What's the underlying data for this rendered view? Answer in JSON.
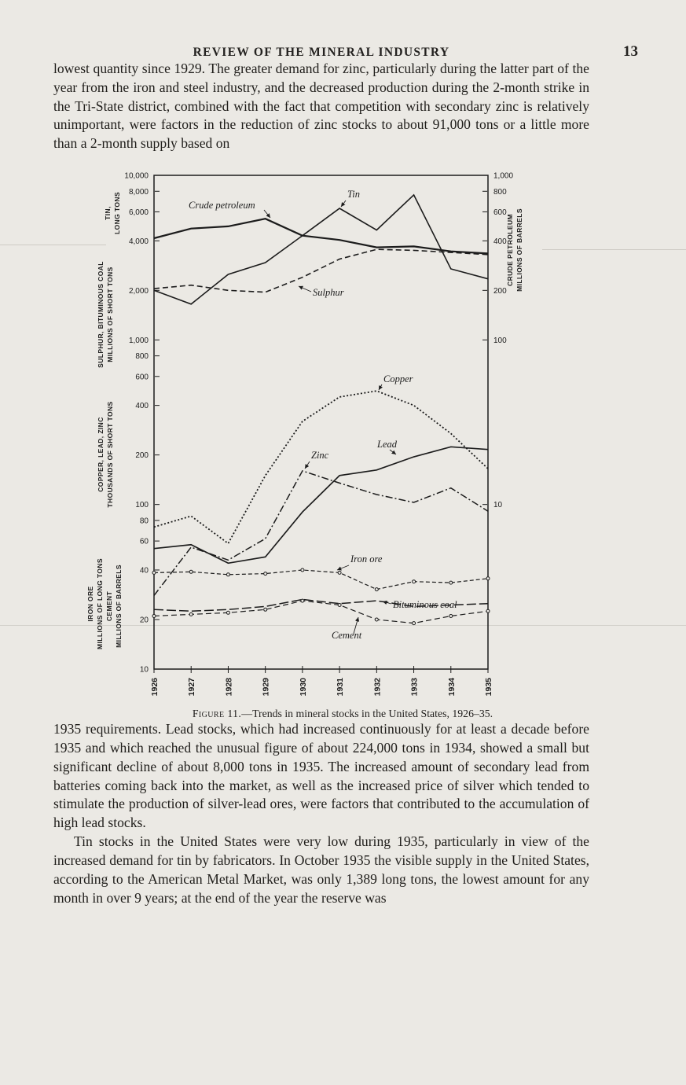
{
  "page": {
    "header": {
      "title": "REVIEW OF THE MINERAL INDUSTRY",
      "page_number": "13"
    },
    "paragraphs": {
      "p1": "lowest quantity since 1929.  The greater demand for zinc, particularly during the latter part of the year from the iron and steel industry, and the decreased production during the 2-month strike in the Tri-State district, combined with the fact that competition with secondary zinc is relatively unimportant, were factors in the reduction of zinc stocks to about 91,000 tons or a little more than a 2-month supply based on",
      "p2": "1935 requirements.  Lead stocks, which had increased continuously for at least a decade before 1935 and which reached the unusual figure of about 224,000 tons in 1934, showed a small but significant decline of about 8,000 tons in 1935.  The increased amount of secondary lead from batteries coming back into the market, as well as the increased price of silver which tended to stimulate the production of silver-lead ores, were factors that contributed to the accumulation of high lead stocks.",
      "p3": "Tin stocks in the United States were very low during 1935, particularly in view of the increased demand for tin by fabricators.  In October 1935 the visible supply in the United States, according to the American Metal Market, was only 1,389 long tons, the lowest amount for any month in over 9 years; at the end of the year the reserve was"
    },
    "figure": {
      "caption_prefix": "Figure 11.",
      "caption_rest": "—Trends in mineral stocks in the United States, 1926–35."
    }
  },
  "chart_data": {
    "type": "line",
    "title": "Trends in mineral stocks in the United States, 1926–35",
    "y_scale": "log",
    "grid": false,
    "x": [
      "1926",
      "1927",
      "1928",
      "1929",
      "1930",
      "1931",
      "1932",
      "1933",
      "1934",
      "1935"
    ],
    "left_axis_ticks": [
      {
        "label": "10,000",
        "value": 10000
      },
      {
        "label": "8,000",
        "value": 8000
      },
      {
        "label": "6,000",
        "value": 6000
      },
      {
        "label": "4,000",
        "value": 4000
      },
      {
        "label": "2,000",
        "value": 2000
      },
      {
        "label": "1,000",
        "value": 1000
      },
      {
        "label": "800",
        "value": 800
      },
      {
        "label": "600",
        "value": 600
      },
      {
        "label": "400",
        "value": 400
      },
      {
        "label": "200",
        "value": 200
      },
      {
        "label": "100",
        "value": 100
      },
      {
        "label": "80",
        "value": 80
      },
      {
        "label": "60",
        "value": 60
      },
      {
        "label": "40",
        "value": 40
      },
      {
        "label": "20",
        "value": 20
      },
      {
        "label": "10",
        "value": 10
      }
    ],
    "right_axis_ticks": [
      {
        "label": "1,000",
        "value": 1000
      },
      {
        "label": "800",
        "value": 800
      },
      {
        "label": "600",
        "value": 600
      },
      {
        "label": "400",
        "value": 400
      },
      {
        "label": "200",
        "value": 200
      },
      {
        "label": "100",
        "value": 100
      },
      {
        "label": "10",
        "value": 10
      }
    ],
    "axis_labels": {
      "tin": [
        "TIN,",
        "LONG TONS"
      ],
      "sulphur_coal": [
        "SULPHUR, BITUMINOUS COAL",
        "MILLIONS OF SHORT TONS"
      ],
      "copper_lead_zinc": [
        "COPPER, LEAD, ZINC",
        "THOUSANDS OF SHORT TONS"
      ],
      "iron_ore": [
        "IRON ORE",
        "MILLIONS OF LONG TONS"
      ],
      "cement": [
        "CEMENT",
        "MILLIONS OF BARRELS"
      ],
      "crude_petroleum": [
        "CRUDE PETROLEUM",
        "MILLIONS OF BARRELS"
      ]
    },
    "note": "Values are estimated readings on the shared logarithmic axis (10–10,000); crude petroleum is read on the right-hand axis (1–1,000 millions of barrels).",
    "series": [
      {
        "id": "crude_petroleum",
        "name": "Crude petroleum",
        "axis": "right",
        "units": "millions of barrels",
        "values": [
          415,
          475,
          490,
          545,
          430,
          405,
          365,
          370,
          345,
          335
        ]
      },
      {
        "id": "tin",
        "name": "Tin",
        "axis": "left",
        "units": "long tons",
        "values": [
          2000,
          1650,
          2500,
          2950,
          4300,
          6300,
          4650,
          7600,
          2700,
          2350
        ]
      },
      {
        "id": "sulphur",
        "name": "Sulphur",
        "axis": "left",
        "units": "millions of short tons (axis reading in thousands)",
        "values": [
          2050,
          2150,
          2000,
          1950,
          2400,
          3100,
          3550,
          3500,
          3400,
          3300
        ]
      },
      {
        "id": "copper",
        "name": "Copper",
        "axis": "left",
        "units": "thousands of short tons",
        "values": [
          73,
          85,
          58,
          150,
          320,
          450,
          490,
          400,
          270,
          165
        ]
      },
      {
        "id": "zinc",
        "name": "Zinc",
        "axis": "left",
        "units": "thousands of short tons",
        "values": [
          28,
          55,
          46,
          62,
          160,
          135,
          115,
          103,
          126,
          91
        ]
      },
      {
        "id": "lead",
        "name": "Lead",
        "axis": "left",
        "units": "thousands of short tons",
        "values": [
          54,
          57,
          44,
          48,
          90,
          150,
          162,
          195,
          224,
          216
        ]
      },
      {
        "id": "iron_ore",
        "name": "Iron ore",
        "axis": "left",
        "units": "millions of long tons",
        "values": [
          38.5,
          39,
          37.5,
          38,
          40,
          38.5,
          30.5,
          34,
          33.5,
          35.5
        ]
      },
      {
        "id": "bituminous_coal",
        "name": "Bituminous coal",
        "axis": "left",
        "units": "millions of short tons",
        "values": [
          23,
          22.5,
          23,
          24,
          26.5,
          25,
          26,
          24,
          24.5,
          25
        ]
      },
      {
        "id": "cement",
        "name": "Cement",
        "axis": "left",
        "units": "millions of barrels",
        "values": [
          21,
          21.5,
          22,
          23,
          26,
          24.5,
          20,
          19,
          21,
          22.5
        ]
      }
    ]
  }
}
